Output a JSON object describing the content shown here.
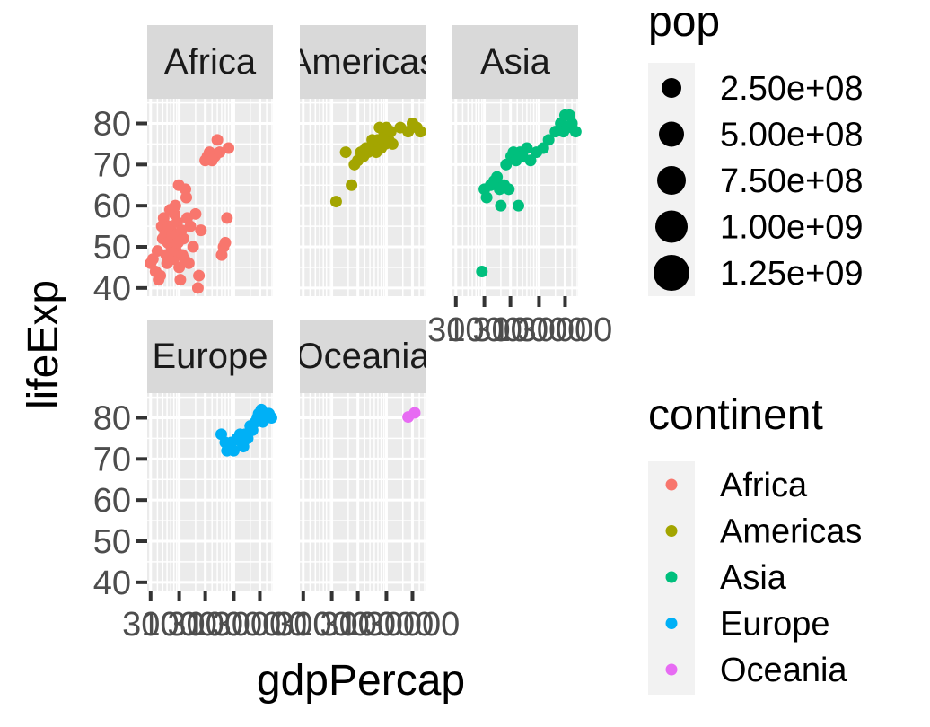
{
  "chart_data": {
    "type": "scatter",
    "facet_by": "continent",
    "xlabel": "gdpPercap",
    "ylabel": "lifeExp",
    "ylim": [
      38,
      86
    ],
    "y_ticks": [
      40,
      50,
      60,
      70,
      80
    ],
    "x_scale": "log10",
    "xlim": [
      260,
      52000
    ],
    "x_ticks": [
      300,
      1000,
      3000,
      10000,
      30000
    ],
    "x_tick_labels": [
      "300",
      "1000",
      "3000",
      "10000",
      "30000"
    ],
    "grid": true,
    "legend_position": "right",
    "size_legend": {
      "title": "pop",
      "breaks": [
        "2.50e+08",
        "5.00e+08",
        "7.50e+08",
        "1.00e+09",
        "1.25e+09"
      ],
      "values": [
        250000000,
        500000000,
        750000000,
        1000000000,
        1250000000
      ]
    },
    "color_legend": {
      "title": "continent",
      "items": [
        {
          "label": "Africa",
          "color": "#F8766D"
        },
        {
          "label": "Americas",
          "color": "#A3A500"
        },
        {
          "label": "Asia",
          "color": "#00BF7D"
        },
        {
          "label": "Europe",
          "color": "#00B0F6"
        },
        {
          "label": "Oceania",
          "color": "#E76BF3"
        }
      ]
    },
    "panels": [
      {
        "name": "Africa",
        "strip": "Africa",
        "color": "#F8766D",
        "points": [
          [
            300,
            46
          ],
          [
            330,
            47
          ],
          [
            370,
            44
          ],
          [
            400,
            49
          ],
          [
            420,
            42
          ],
          [
            450,
            43
          ],
          [
            480,
            55
          ],
          [
            500,
            52
          ],
          [
            520,
            57
          ],
          [
            550,
            53
          ],
          [
            580,
            48
          ],
          [
            600,
            46
          ],
          [
            620,
            51
          ],
          [
            650,
            55
          ],
          [
            680,
            59
          ],
          [
            700,
            54
          ],
          [
            720,
            50
          ],
          [
            750,
            53
          ],
          [
            780,
            47
          ],
          [
            800,
            52
          ],
          [
            820,
            58
          ],
          [
            850,
            60
          ],
          [
            880,
            49
          ],
          [
            900,
            53
          ],
          [
            920,
            56
          ],
          [
            950,
            51
          ],
          [
            980,
            65
          ],
          [
            1000,
            45
          ],
          [
            1050,
            42
          ],
          [
            1100,
            54
          ],
          [
            1150,
            48
          ],
          [
            1200,
            52
          ],
          [
            1250,
            47
          ],
          [
            1300,
            64
          ],
          [
            1350,
            62
          ],
          [
            1400,
            57
          ],
          [
            1500,
            46
          ],
          [
            1600,
            55
          ],
          [
            1800,
            50
          ],
          [
            2000,
            58
          ],
          [
            2200,
            40
          ],
          [
            2300,
            43
          ],
          [
            2500,
            54
          ],
          [
            3000,
            71
          ],
          [
            3300,
            72
          ],
          [
            3600,
            73
          ],
          [
            4000,
            71
          ],
          [
            4500,
            72
          ],
          [
            5000,
            76
          ],
          [
            5500,
            73
          ],
          [
            6000,
            48
          ],
          [
            6500,
            50
          ],
          [
            7000,
            51
          ],
          [
            7500,
            57
          ],
          [
            8000,
            74
          ]
        ]
      },
      {
        "name": "Americas",
        "strip": "Americas",
        "color": "#A3A500",
        "points": [
          [
            1200,
            61
          ],
          [
            1800,
            73
          ],
          [
            2300,
            65
          ],
          [
            2600,
            70
          ],
          [
            3000,
            71
          ],
          [
            3400,
            73
          ],
          [
            3800,
            72
          ],
          [
            4200,
            74
          ],
          [
            4600,
            73
          ],
          [
            5000,
            74
          ],
          [
            5500,
            76
          ],
          [
            6000,
            75
          ],
          [
            6500,
            73
          ],
          [
            7000,
            76
          ],
          [
            7500,
            79
          ],
          [
            8000,
            74
          ],
          [
            8500,
            76
          ],
          [
            9000,
            78
          ],
          [
            9500,
            75
          ],
          [
            10000,
            79
          ],
          [
            11000,
            76
          ],
          [
            12000,
            78
          ],
          [
            13000,
            75
          ],
          [
            18000,
            79
          ],
          [
            25000,
            78
          ],
          [
            30000,
            80
          ],
          [
            36000,
            79
          ],
          [
            42000,
            78
          ]
        ]
      },
      {
        "name": "Asia",
        "strip": "Asia",
        "color": "#00BF7D",
        "points": [
          [
            900,
            44
          ],
          [
            1000,
            64
          ],
          [
            1100,
            62
          ],
          [
            1300,
            65
          ],
          [
            1500,
            66
          ],
          [
            1700,
            67
          ],
          [
            1900,
            64
          ],
          [
            2000,
            60
          ],
          [
            2300,
            65
          ],
          [
            2500,
            70
          ],
          [
            2800,
            64
          ],
          [
            3100,
            72
          ],
          [
            3400,
            73
          ],
          [
            3800,
            71
          ],
          [
            4200,
            60
          ],
          [
            4500,
            73
          ],
          [
            5000,
            72
          ],
          [
            6000,
            74
          ],
          [
            7000,
            71
          ],
          [
            9000,
            73
          ],
          [
            12000,
            74
          ],
          [
            15000,
            76
          ],
          [
            20000,
            78
          ],
          [
            25000,
            80
          ],
          [
            28000,
            78
          ],
          [
            30000,
            82
          ],
          [
            33000,
            79
          ],
          [
            36000,
            82
          ],
          [
            40000,
            80
          ],
          [
            47000,
            78
          ]
        ]
      },
      {
        "name": "Europe",
        "strip": "Europe",
        "color": "#00B0F6",
        "points": [
          [
            5900,
            76
          ],
          [
            7000,
            74
          ],
          [
            7500,
            72
          ],
          [
            8000,
            73
          ],
          [
            9000,
            74
          ],
          [
            10000,
            72
          ],
          [
            11500,
            75
          ],
          [
            13000,
            76
          ],
          [
            14000,
            74
          ],
          [
            15000,
            73
          ],
          [
            16000,
            76
          ],
          [
            18000,
            75
          ],
          [
            20000,
            78
          ],
          [
            22000,
            77
          ],
          [
            25000,
            79
          ],
          [
            27000,
            80
          ],
          [
            28500,
            81
          ],
          [
            30000,
            80
          ],
          [
            32000,
            82
          ],
          [
            34000,
            79
          ],
          [
            36000,
            81
          ],
          [
            40000,
            80
          ],
          [
            44000,
            81
          ],
          [
            49000,
            80
          ]
        ]
      },
      {
        "name": "Oceania",
        "strip": "Oceania",
        "color": "#E76BF3",
        "points": [
          [
            25000,
            80.2
          ],
          [
            33000,
            81.2
          ]
        ]
      }
    ]
  }
}
